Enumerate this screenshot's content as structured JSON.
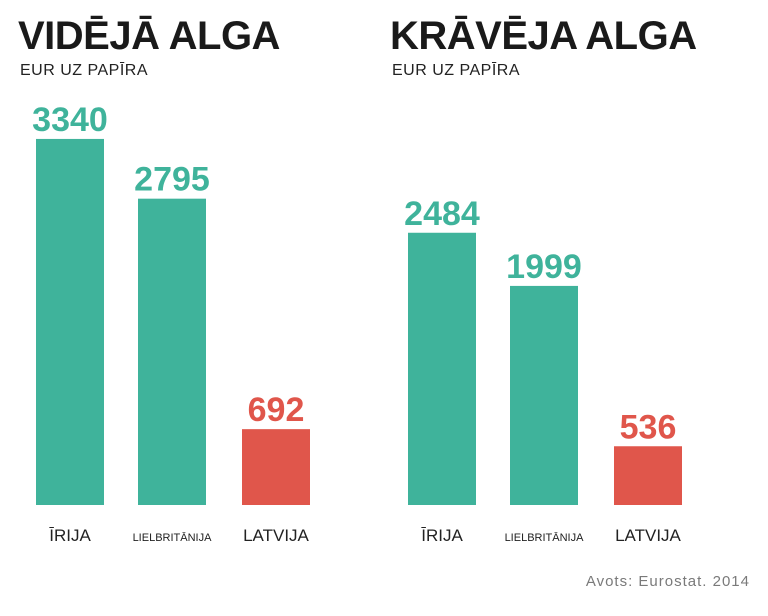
{
  "colors": {
    "bar": "#3fb39b",
    "highlight": "#e0564b",
    "text": "#1a1a1a"
  },
  "chart_data": [
    {
      "type": "bar",
      "title": "VIDĒJĀ ALGA",
      "subtitle": "EUR UZ PAPĪRA",
      "categories": [
        "ĪRIJA",
        "LIELBRITĀNIJA",
        "LATVIJA"
      ],
      "values": [
        3340,
        2795,
        692
      ],
      "value_labels": [
        "3340",
        "2795",
        "692"
      ],
      "highlight_index": 2,
      "ylim": [
        0,
        3500
      ]
    },
    {
      "type": "bar",
      "title": "KRĀVĒJA ALGA",
      "subtitle": "EUR UZ PAPĪRA",
      "categories": [
        "ĪRIJA",
        "LIELBRITĀNIJA",
        "LATVIJA"
      ],
      "values": [
        2484,
        1999,
        536
      ],
      "value_labels": [
        "2484",
        "1999",
        "536"
      ],
      "highlight_index": 2,
      "ylim": [
        0,
        3500
      ]
    }
  ],
  "source": "Avots: Eurostat. 2014"
}
